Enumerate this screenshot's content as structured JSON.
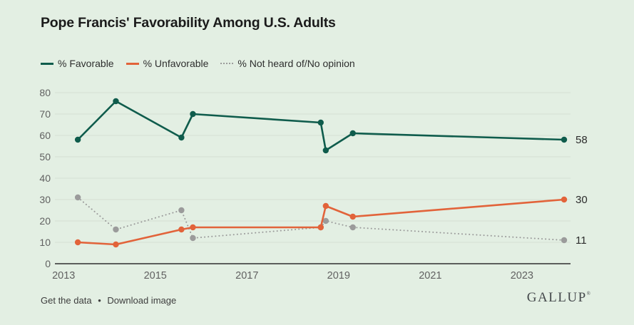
{
  "header": {
    "title": "Pope Francis' Favorability Among U.S. Adults"
  },
  "legend": {
    "items": [
      {
        "id": "favorable",
        "label": "% Favorable",
        "color": "#0f5c4c",
        "style": "solid"
      },
      {
        "id": "unfavorable",
        "label": "% Unfavorable",
        "color": "#e2633a",
        "style": "solid"
      },
      {
        "id": "not_heard",
        "label": "% Not heard of/No opinion",
        "color": "#9b9b9b",
        "style": "dotted"
      }
    ]
  },
  "chart_data": {
    "type": "line",
    "title": "Pope Francis' Favorability Among U.S. Adults",
    "xlabel": "",
    "ylabel": "",
    "x_domain": [
      2012.81,
      2024.06
    ],
    "x_ticks": [
      2013,
      2015,
      2017,
      2019,
      2021,
      2023
    ],
    "ylim": [
      0,
      80
    ],
    "y_ticks": [
      0,
      10,
      20,
      30,
      40,
      50,
      60,
      70,
      80
    ],
    "grid": "horizontal",
    "legend_position": "top",
    "x": [
      2013.31,
      2014.14,
      2015.57,
      2015.82,
      2018.61,
      2018.72,
      2019.31,
      2023.92
    ],
    "series": [
      {
        "name": "% Favorable",
        "values": [
          58,
          76,
          59,
          70,
          66,
          53,
          61,
          58
        ],
        "color": "#0f5c4c",
        "line_style": "solid",
        "end_label": "58"
      },
      {
        "name": "% Unfavorable",
        "values": [
          10,
          9,
          16,
          17,
          17,
          27,
          22,
          30
        ],
        "color": "#e2633a",
        "line_style": "solid",
        "end_label": "30"
      },
      {
        "name": "% Not heard of/No opinion",
        "values": [
          31,
          16,
          25,
          12,
          17,
          20,
          17,
          11
        ],
        "color": "#9b9b9b",
        "line_style": "dotted",
        "end_label": "11"
      }
    ]
  },
  "footer": {
    "links": [
      {
        "label": "Get the data"
      },
      {
        "label": "Download image"
      }
    ],
    "separator": "•",
    "brand": "GALLUP",
    "brand_mark": "®"
  },
  "colors": {
    "background": "#e3efe3",
    "gridline": "#d5dfd3",
    "axis_line": "#2f2f2f",
    "tick_text": "#616161",
    "end_label_text": "#2b2b2b",
    "title_text": "#1b1b1b",
    "footer_text": "#3d3d3d",
    "brand_text": "#45494c"
  }
}
